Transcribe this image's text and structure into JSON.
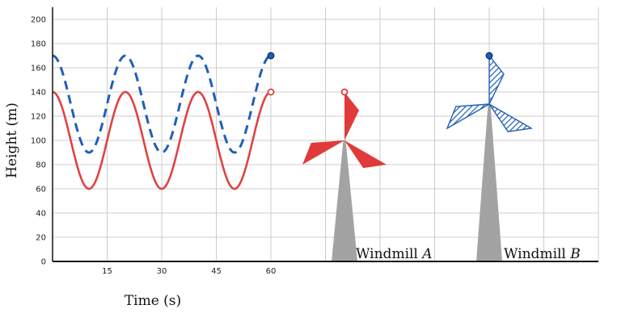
{
  "chart_data": {
    "type": "line",
    "xlabel": "Time (s)",
    "ylabel": "Height (m)",
    "xlim": [
      0,
      62
    ],
    "ylim": [
      0,
      210
    ],
    "x_ticks": [
      15,
      30,
      45,
      60
    ],
    "y_ticks": [
      0,
      20,
      40,
      60,
      80,
      100,
      120,
      140,
      160,
      180,
      200
    ],
    "grid": true,
    "series": [
      {
        "name": "",
        "color": "#e04343",
        "style": "solid",
        "model": "y = 100 + 40*cos(2*pi*t/20)",
        "x": [
          0,
          5,
          10,
          15,
          20,
          25,
          30,
          35,
          40,
          45,
          50,
          55,
          60
        ],
        "y": [
          140,
          100,
          60,
          100,
          140,
          100,
          60,
          100,
          140,
          100,
          60,
          100,
          140
        ],
        "endpoint": {
          "x": 60,
          "y": 140,
          "marker": "open-circle"
        }
      },
      {
        "name": "",
        "color": "#1f5fb8",
        "style": "dashed",
        "model": "y = 130 + 40*cos(2*pi*t/20)",
        "x": [
          0,
          5,
          10,
          15,
          20,
          25,
          30,
          35,
          40,
          45,
          50,
          55,
          60
        ],
        "y": [
          170,
          130,
          90,
          130,
          170,
          130,
          90,
          130,
          170,
          130,
          90,
          130,
          170
        ],
        "endpoint": {
          "x": 60,
          "y": 170,
          "marker": "filled-circle"
        }
      }
    ]
  },
  "windmills": [
    {
      "label": "Windmill ",
      "label_var": "A",
      "hub_height": 100,
      "blade_length": 40,
      "blade_tip_height": 140,
      "color": "#e03a3a",
      "fill": "solid"
    },
    {
      "label": "Windmill ",
      "label_var": "B",
      "hub_height": 130,
      "blade_length": 40,
      "blade_tip_height": 170,
      "color": "#1f5fb8",
      "fill": "hatched"
    }
  ],
  "colors": {
    "tower": "#a3a3a3",
    "grid": "#cccccc",
    "axis": "#111111"
  }
}
